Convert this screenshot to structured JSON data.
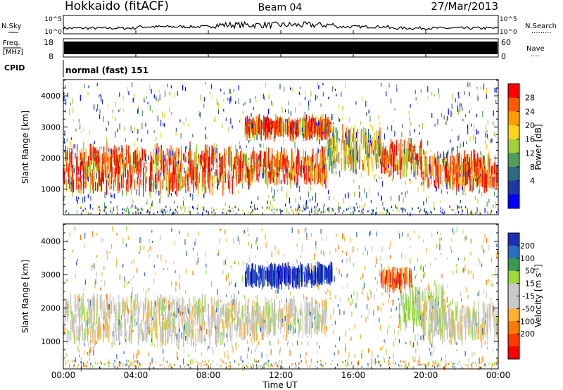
{
  "header": {
    "title": "Hokkaido (fitACF)",
    "beam": "Beam 04",
    "date": "27/Mar/2013"
  },
  "noise_panel": {
    "left_label": "N.Sky",
    "right_label": "N.Search",
    "right_dots": "·········",
    "left_ticks": [
      "10^5",
      "10^0"
    ],
    "right_ticks": [
      "10^5",
      "10^0"
    ]
  },
  "freq_panel": {
    "left_label_1": "Freq.",
    "left_label_2": "[MHz]",
    "right_label": "Nave",
    "right_dots": "····",
    "left_ticks": [
      "18",
      "8"
    ],
    "right_ticks": [
      "60",
      "0"
    ]
  },
  "cpid_panel": {
    "left_label": "CPID",
    "text": "normal (fast) 151"
  },
  "chart_data": [
    {
      "type": "heatmap",
      "name": "power",
      "ylabel": "Slant Range [km]",
      "y_ticks": [
        1000,
        2000,
        3000,
        4000
      ],
      "ylim": [
        200,
        4500
      ],
      "colorbar_label": "Power [dB]",
      "colorbar_ticks": [
        "28",
        "24",
        "20",
        "16",
        "12",
        "8",
        "4"
      ],
      "colorbar_colors": [
        "#ff0000",
        "#ff5a00",
        "#ff9d00",
        "#ffd21e",
        "#9fd13a",
        "#4f9e5a",
        "#2d6a84",
        "#1b3aa8",
        "#0000ff"
      ],
      "bands": [
        {
          "t": [
            0,
            9.5
          ],
          "r": [
            1050,
            2200
          ],
          "level": "high"
        },
        {
          "t": [
            9.5,
            14.5
          ],
          "r": [
            1300,
            2100
          ],
          "level": "high"
        },
        {
          "t": [
            10,
            14.8
          ],
          "r": [
            2850,
            3100
          ],
          "level": "high"
        },
        {
          "t": [
            14.5,
            17.5
          ],
          "r": [
            1700,
            2800
          ],
          "level": "mid"
        },
        {
          "t": [
            17.5,
            19.8
          ],
          "r": [
            1600,
            2400
          ],
          "level": "high"
        },
        {
          "t": [
            19.8,
            24
          ],
          "r": [
            1150,
            2000
          ],
          "level": "high"
        }
      ]
    },
    {
      "type": "heatmap",
      "name": "velocity",
      "ylabel": "Slant Range [km]",
      "y_ticks": [
        1000,
        2000,
        3000,
        4000
      ],
      "ylim": [
        200,
        4500
      ],
      "colorbar_label": "Velocity [m s",
      "colorbar_label_sup": "-1",
      "colorbar_label_end": "]",
      "colorbar_ticks": [
        "200",
        "100",
        "50",
        "15",
        "-15",
        "-50",
        "-100",
        "-200"
      ],
      "colorbar_colors": [
        "#1c2fb5",
        "#2d6dc4",
        "#3a9a4d",
        "#9bdc3c",
        "#c9c9c9",
        "#c9c9c9",
        "#ffb02e",
        "#ff7a00",
        "#ff3a00",
        "#ff0000"
      ],
      "bands": [
        {
          "t": [
            0,
            9.5
          ],
          "r": [
            1050,
            2200
          ],
          "level": "grey"
        },
        {
          "t": [
            9.5,
            14.5
          ],
          "r": [
            1300,
            2100
          ],
          "level": "grey"
        },
        {
          "t": [
            10,
            14.8
          ],
          "r": [
            2850,
            3100
          ],
          "level": "blue"
        },
        {
          "t": [
            17.5,
            19.2
          ],
          "r": [
            2700,
            3000
          ],
          "level": "red"
        },
        {
          "t": [
            18.5,
            21
          ],
          "r": [
            1500,
            2500
          ],
          "level": "green"
        },
        {
          "t": [
            19.8,
            24
          ],
          "r": [
            1150,
            2000
          ],
          "level": "grey"
        }
      ]
    }
  ],
  "x_axis": {
    "ticks": [
      "00:00",
      "04:00",
      "08:00",
      "12:00",
      "16:00",
      "20:00",
      "00:00"
    ],
    "xlabel": "Time UT"
  }
}
